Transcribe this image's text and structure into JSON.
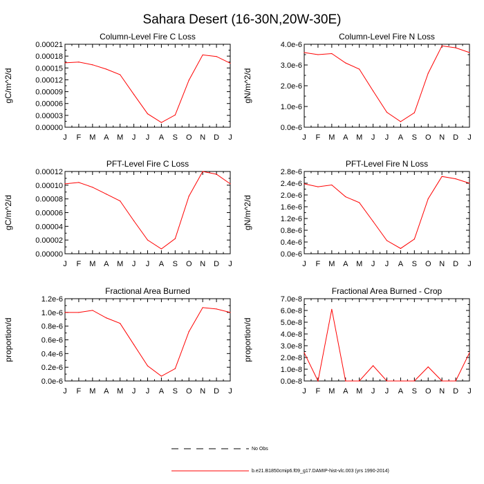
{
  "figure": {
    "title": "Sahara Desert (16-30N,20W-30E)"
  },
  "legend": {
    "obs_label": "No Obs",
    "model_label": "b.e21.B1850cmip6.f09_g17.DAMIP-hist-vlc.003 (yrs 1990-2014)",
    "obs_color": "#000000",
    "model_color": "#ff0000"
  },
  "chart_data": [
    {
      "type": "line",
      "title": "Column-Level Fire C Loss",
      "xlabel": "",
      "ylabel": "gC/m^2/d",
      "categories": [
        "J",
        "F",
        "M",
        "A",
        "M",
        "J",
        "J",
        "A",
        "S",
        "O",
        "N",
        "D",
        "J"
      ],
      "ylim": [
        0,
        0.00021
      ],
      "yticks": [
        0,
        3e-05,
        6e-05,
        9e-05,
        0.00012,
        0.00015,
        0.00018,
        0.00021
      ],
      "ytick_labels": [
        "0.00000",
        "0.00003",
        "0.00006",
        "0.00009",
        "0.00012",
        "0.00015",
        "0.00018",
        "0.00021"
      ],
      "series": [
        {
          "name": "b.e21.B1850cmip6.f09_g17.DAMIP-hist-vlc.003 (yrs 1990-2014)",
          "color": "#ff0000",
          "values": [
            0.000163,
            0.000165,
            0.000158,
            0.000147,
            0.000133,
            8.3e-05,
            3.4e-05,
            1.2e-05,
            3.1e-05,
            0.000119,
            0.000183,
            0.000179,
            0.000162
          ]
        }
      ]
    },
    {
      "type": "line",
      "title": "Column-Level Fire N Loss",
      "xlabel": "",
      "ylabel": "gN/m^2/d",
      "categories": [
        "J",
        "F",
        "M",
        "A",
        "M",
        "J",
        "J",
        "A",
        "S",
        "O",
        "N",
        "D",
        "J"
      ],
      "ylim": [
        0,
        4e-06
      ],
      "yticks": [
        0,
        1e-06,
        2e-06,
        3e-06,
        4e-06
      ],
      "ytick_labels": [
        "0.0e-6",
        "1.0e-6",
        "2.0e-6",
        "3.0e-6",
        "4.0e-6"
      ],
      "series": [
        {
          "name": "b.e21.B1850cmip6.f09_g17.DAMIP-hist-vlc.003 (yrs 1990-2014)",
          "color": "#ff0000",
          "values": [
            3.6e-06,
            3.5e-06,
            3.55e-06,
            3.1e-06,
            2.8e-06,
            1.75e-06,
            7.2e-07,
            2.7e-07,
            7e-07,
            2.6e-06,
            3.92e-06,
            3.83e-06,
            3.6e-06
          ]
        }
      ]
    },
    {
      "type": "line",
      "title": "PFT-Level Fire C Loss",
      "xlabel": "",
      "ylabel": "gC/m^2/d",
      "categories": [
        "J",
        "F",
        "M",
        "A",
        "M",
        "J",
        "J",
        "A",
        "S",
        "O",
        "N",
        "D",
        "J"
      ],
      "ylim": [
        0,
        0.00012
      ],
      "yticks": [
        0,
        2e-05,
        4e-05,
        6e-05,
        8e-05,
        0.0001,
        0.00012
      ],
      "ytick_labels": [
        "0.00000",
        "0.00002",
        "0.00004",
        "0.00006",
        "0.00008",
        "0.00010",
        "0.00012"
      ],
      "series": [
        {
          "name": "b.e21.B1850cmip6.f09_g17.DAMIP-hist-vlc.003 (yrs 1990-2014)",
          "color": "#ff0000",
          "values": [
            0.000102,
            0.000104,
            9.7e-05,
            8.7e-05,
            7.7e-05,
            4.8e-05,
            2e-05,
            7e-06,
            2.2e-05,
            8.4e-05,
            0.00012,
            0.000116,
            0.000102
          ]
        }
      ]
    },
    {
      "type": "line",
      "title": "PFT-Level Fire N Loss",
      "xlabel": "",
      "ylabel": "gN/m^2/d",
      "categories": [
        "J",
        "F",
        "M",
        "A",
        "M",
        "J",
        "J",
        "A",
        "S",
        "O",
        "N",
        "D",
        "J"
      ],
      "ylim": [
        0,
        2.8e-06
      ],
      "yticks": [
        0,
        4e-07,
        8e-07,
        1.2e-06,
        1.6e-06,
        2e-06,
        2.4e-06,
        2.8e-06
      ],
      "ytick_labels": [
        "0.0e-6",
        "0.4e-6",
        "0.8e-6",
        "1.2e-6",
        "1.6e-6",
        "2.0e-6",
        "2.4e-6",
        "2.8e-6"
      ],
      "series": [
        {
          "name": "b.e21.B1850cmip6.f09_g17.DAMIP-hist-vlc.003 (yrs 1990-2014)",
          "color": "#ff0000",
          "values": [
            2.38e-06,
            2.28e-06,
            2.34e-06,
            1.94e-06,
            1.74e-06,
            1.1e-06,
            4.5e-07,
            1.8e-07,
            5e-07,
            1.87e-06,
            2.63e-06,
            2.55e-06,
            2.4e-06
          ]
        }
      ]
    },
    {
      "type": "line",
      "title": "Fractional Area Burned",
      "xlabel": "",
      "ylabel": "proportion/d",
      "categories": [
        "J",
        "F",
        "M",
        "A",
        "M",
        "J",
        "J",
        "A",
        "S",
        "O",
        "N",
        "D",
        "J"
      ],
      "ylim": [
        0,
        1.2e-06
      ],
      "yticks": [
        0,
        2e-07,
        4e-07,
        6e-07,
        8e-07,
        1e-06,
        1.2e-06
      ],
      "ytick_labels": [
        "0.0e-6",
        "0.2e-6",
        "0.4e-6",
        "0.6e-6",
        "0.8e-6",
        "1.0e-6",
        "1.2e-6"
      ],
      "series": [
        {
          "name": "b.e21.B1850cmip6.f09_g17.DAMIP-hist-vlc.003 (yrs 1990-2014)",
          "color": "#ff0000",
          "values": [
            1e-06,
            1e-06,
            1.03e-06,
            9.2e-07,
            8.4e-07,
            5.3e-07,
            2.2e-07,
            7e-08,
            1.8e-07,
            7.2e-07,
            1.07e-06,
            1.05e-06,
            1e-06
          ]
        }
      ]
    },
    {
      "type": "line",
      "title": "Fractional Area Burned - Crop",
      "xlabel": "",
      "ylabel": "proportion/d",
      "categories": [
        "J",
        "F",
        "M",
        "A",
        "M",
        "J",
        "J",
        "A",
        "S",
        "O",
        "N",
        "D",
        "J"
      ],
      "ylim": [
        0,
        7e-08
      ],
      "yticks": [
        0,
        1e-08,
        2e-08,
        3e-08,
        4e-08,
        5e-08,
        6e-08,
        7e-08
      ],
      "ytick_labels": [
        "0.0e-8",
        "1.0e-8",
        "2.0e-8",
        "3.0e-8",
        "4.0e-8",
        "5.0e-8",
        "6.0e-8",
        "7.0e-8"
      ],
      "series": [
        {
          "name": "b.e21.B1850cmip6.f09_g17.DAMIP-hist-vlc.003 (yrs 1990-2014)",
          "color": "#ff0000",
          "values": [
            2.4e-08,
            0,
            6.1e-08,
            0,
            0,
            1.3e-08,
            0,
            0,
            0,
            1.2e-08,
            0,
            0,
            2.4e-08
          ]
        }
      ]
    }
  ]
}
